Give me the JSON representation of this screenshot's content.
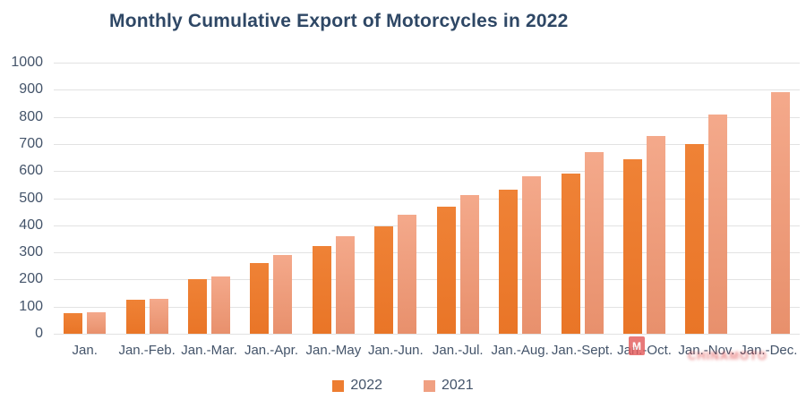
{
  "title": "Monthly Cumulative Export of Motorcycles in 2022",
  "chart_data": {
    "type": "bar",
    "title": "Monthly Cumulative Export of Motorcycles in 2022",
    "categories": [
      "Jan.",
      "Jan.-Feb.",
      "Jan.-Mar.",
      "Jan.-Apr.",
      "Jan.-May",
      "Jan.-Jun.",
      "Jan.-Jul.",
      "Jan.-Aug.",
      "Jan.-Sept.",
      "Jan.-Oct.",
      "Jan.-Nov.",
      "Jan.-Dec."
    ],
    "series": [
      {
        "name": "2022",
        "color": "#ED7D31",
        "values": [
          75,
          125,
          200,
          260,
          325,
          395,
          470,
          530,
          590,
          645,
          700,
          null
        ]
      },
      {
        "name": "2021",
        "color": "#F0A082",
        "values": [
          80,
          130,
          210,
          290,
          360,
          440,
          510,
          580,
          670,
          730,
          810,
          890
        ]
      }
    ],
    "xlabel": "",
    "ylabel": "",
    "ylim": [
      0,
      1000
    ],
    "ytick_step": 100,
    "yticks": [
      0,
      100,
      200,
      300,
      400,
      500,
      600,
      700,
      800,
      900,
      1000
    ],
    "grid": "horizontal",
    "legend_position": "bottom"
  },
  "watermark": {
    "logo_letter": "M",
    "text": "CHINAMOTO",
    "color": "#DD3B3B"
  },
  "colors": {
    "title": "#2E4765",
    "axis_labels": "#44546A",
    "gridline": "#E2E2E2",
    "series_2022": "#ED7D31",
    "series_2021": "#F0A082"
  }
}
